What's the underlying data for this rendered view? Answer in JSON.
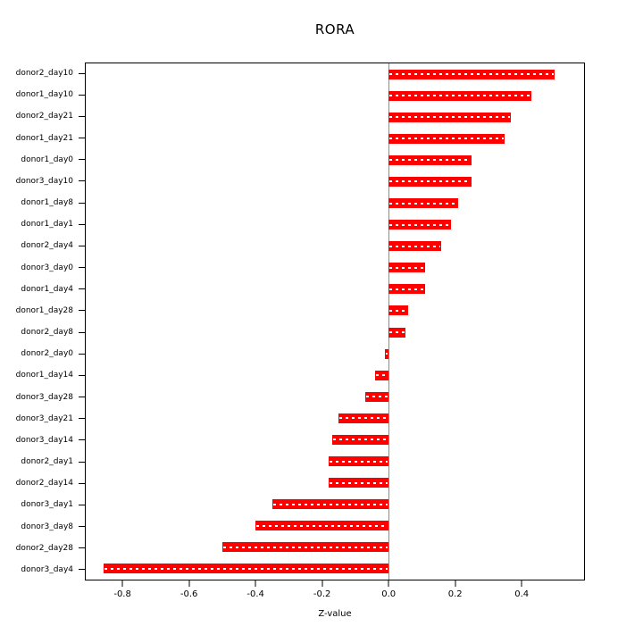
{
  "chart_data": {
    "type": "bar",
    "orientation": "horizontal",
    "title": "RORA",
    "xlabel": "Z-value",
    "bar_color": "#ff0000",
    "zero_line_color": "#00ee00",
    "grid": false,
    "legend": false,
    "xlim": [
      -0.913,
      0.59
    ],
    "x_ticks": [
      {
        "value": -0.8,
        "label": "-0.8"
      },
      {
        "value": -0.6,
        "label": "-0.6"
      },
      {
        "value": -0.4,
        "label": "-0.4"
      },
      {
        "value": -0.2,
        "label": "-0.2"
      },
      {
        "value": 0.0,
        "label": "0.0"
      },
      {
        "value": 0.2,
        "label": "0.2"
      },
      {
        "value": 0.4,
        "label": "0.4"
      }
    ],
    "categories": [
      "donor2_day10",
      "donor1_day10",
      "donor2_day21",
      "donor1_day21",
      "donor1_day0",
      "donor3_day10",
      "donor1_day8",
      "donor1_day1",
      "donor2_day4",
      "donor3_day0",
      "donor1_day4",
      "donor1_day28",
      "donor2_day8",
      "donor2_day0",
      "donor1_day14",
      "donor3_day28",
      "donor3_day21",
      "donor3_day14",
      "donor2_day1",
      "donor2_day14",
      "donor3_day1",
      "donor3_day8",
      "donor2_day28",
      "donor3_day4"
    ],
    "values": [
      0.5,
      0.43,
      0.37,
      0.35,
      0.25,
      0.25,
      0.21,
      0.19,
      0.16,
      0.11,
      0.11,
      0.06,
      0.05,
      -0.01,
      -0.04,
      -0.07,
      -0.15,
      -0.17,
      -0.18,
      -0.18,
      -0.35,
      -0.4,
      -0.5,
      -0.86
    ]
  }
}
